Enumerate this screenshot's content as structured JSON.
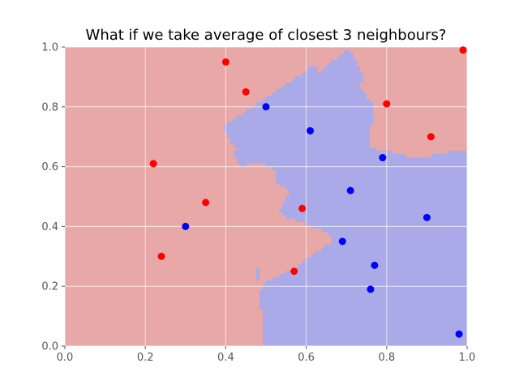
{
  "chart_data": {
    "type": "scatter",
    "title": "What if we take average of closest 3 neighbours?",
    "xlabel": "",
    "ylabel": "",
    "xlim": [
      0.0,
      1.0
    ],
    "ylim": [
      0.0,
      1.0
    ],
    "x_ticks": [
      "0.0",
      "0.2",
      "0.4",
      "0.6",
      "0.8",
      "1.0"
    ],
    "y_ticks": [
      "0.0",
      "0.2",
      "0.4",
      "0.6",
      "0.8",
      "1.0"
    ],
    "grid": true,
    "background": "decision regions from averaging the 3 nearest neighbours (red region = red class, blue region = blue class)",
    "series": [
      {
        "color": "#ff0000",
        "region_color": "#e8a8a8",
        "points": [
          [
            0.4,
            0.95
          ],
          [
            0.45,
            0.85
          ],
          [
            0.22,
            0.61
          ],
          [
            0.35,
            0.48
          ],
          [
            0.24,
            0.3
          ],
          [
            0.59,
            0.46
          ],
          [
            0.57,
            0.25
          ],
          [
            0.8,
            0.81
          ],
          [
            0.91,
            0.7
          ],
          [
            0.99,
            0.99
          ]
        ]
      },
      {
        "color": "#0000ff",
        "region_color": "#aaaae8",
        "points": [
          [
            0.5,
            0.8
          ],
          [
            0.61,
            0.72
          ],
          [
            0.79,
            0.63
          ],
          [
            0.71,
            0.52
          ],
          [
            0.3,
            0.4
          ],
          [
            0.9,
            0.43
          ],
          [
            0.69,
            0.35
          ],
          [
            0.77,
            0.27
          ],
          [
            0.76,
            0.19
          ],
          [
            0.98,
            0.04
          ]
        ]
      }
    ]
  }
}
